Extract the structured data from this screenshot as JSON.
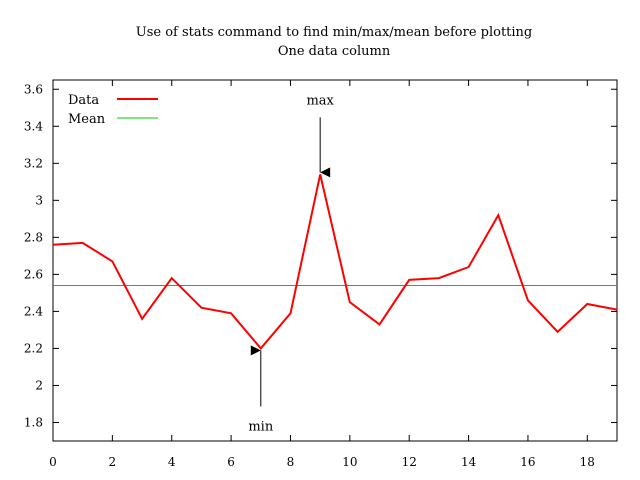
{
  "chart_data": {
    "type": "line",
    "title": "Use of stats command to find min/max/mean before plotting",
    "subtitle": "One data column",
    "xlabel": "",
    "ylabel": "",
    "xlim": [
      0,
      19
    ],
    "ylim": [
      1.7,
      3.65
    ],
    "x_ticks": [
      0,
      2,
      4,
      6,
      8,
      10,
      12,
      14,
      16,
      18
    ],
    "y_ticks": [
      1.8,
      2,
      2.2,
      2.4,
      2.6,
      2.8,
      3,
      3.2,
      3.4,
      3.6
    ],
    "grid": false,
    "legend_position": "top-left",
    "series": [
      {
        "name": "Data",
        "color": "#ff0000",
        "x": [
          0,
          1,
          2,
          3,
          4,
          5,
          6,
          7,
          8,
          9,
          10,
          11,
          12,
          13,
          14,
          15,
          16,
          17,
          18,
          19
        ],
        "values": [
          2.76,
          2.77,
          2.67,
          2.36,
          2.58,
          2.42,
          2.39,
          2.2,
          2.39,
          3.14,
          2.45,
          2.33,
          2.57,
          2.58,
          2.64,
          2.92,
          2.46,
          2.29,
          2.44,
          2.41
        ]
      },
      {
        "name": "Mean",
        "color": "#00cc00",
        "value": 2.54
      }
    ],
    "annotations": [
      {
        "label": "max",
        "x": 9,
        "y": 3.14,
        "direction": "down"
      },
      {
        "label": "min",
        "x": 7,
        "y": 2.2,
        "direction": "up"
      }
    ]
  }
}
